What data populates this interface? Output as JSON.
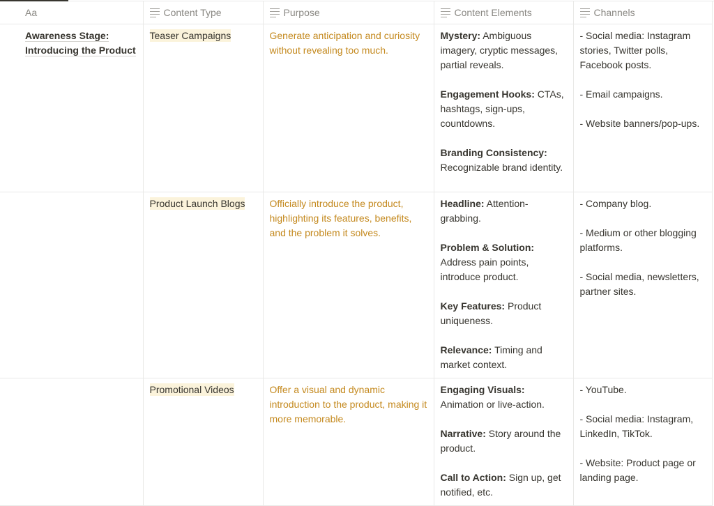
{
  "headers": [
    {
      "label": "Aa",
      "icon": "title-icon"
    },
    {
      "label": "Content Type",
      "icon": "text-lines-icon"
    },
    {
      "label": "Purpose",
      "icon": "text-lines-icon"
    },
    {
      "label": "Content Elements",
      "icon": "text-lines-icon"
    },
    {
      "label": "Channels",
      "icon": "text-lines-icon"
    }
  ],
  "colors": {
    "purpose_text": "#c4891e",
    "content_type_highlight": "#fbf3db"
  },
  "rows": [
    {
      "name": "Awareness Stage: Introducing the Product",
      "content_type": "Teaser Campaigns",
      "purpose": "Generate anticipation and curiosity without revealing too much.",
      "elements": [
        {
          "label": "Mystery:",
          "text": " Ambiguous imagery, cryptic messages, partial reveals."
        },
        {
          "label": "Engagement Hooks:",
          "text": " CTAs, hashtags, sign-ups, countdowns."
        },
        {
          "label": "Branding Consistency:",
          "text": " Recognizable brand identity."
        }
      ],
      "channels": [
        "- Social media: Instagram stories, Twitter polls, Facebook posts.",
        " - Email campaigns.",
        "- Website banners/pop-ups."
      ]
    },
    {
      "name": "",
      "content_type": "Product Launch Blogs",
      "purpose": "Officially introduce the product, highlighting its features, benefits, and the problem it solves.",
      "elements": [
        {
          "label": "Headline:",
          "text": " Attention-grabbing."
        },
        {
          "label": "Problem & Solution:",
          "text": " Address pain points, introduce product."
        },
        {
          "label": "Key Features:",
          "text": " Product uniqueness."
        },
        {
          "label": "Relevance:",
          "text": " Timing and market context."
        }
      ],
      "channels": [
        "- Company blog.",
        "- Medium or other blogging platforms.",
        "- Social media, newsletters, partner sites."
      ]
    },
    {
      "name": "",
      "content_type": "Promotional Videos",
      "purpose": "Offer a visual and dynamic introduction to the product, making it more memorable.",
      "elements": [
        {
          "label": "Engaging Visuals:",
          "text": " Animation or live-action."
        },
        {
          "label": "Narrative:",
          "text": " Story around the product."
        },
        {
          "label": "Call to Action:",
          "text": " Sign up, get notified, etc."
        }
      ],
      "channels": [
        "- YouTube.",
        "- Social media: Instagram, LinkedIn, TikTok.",
        "- Website: Product page or landing page."
      ]
    }
  ]
}
